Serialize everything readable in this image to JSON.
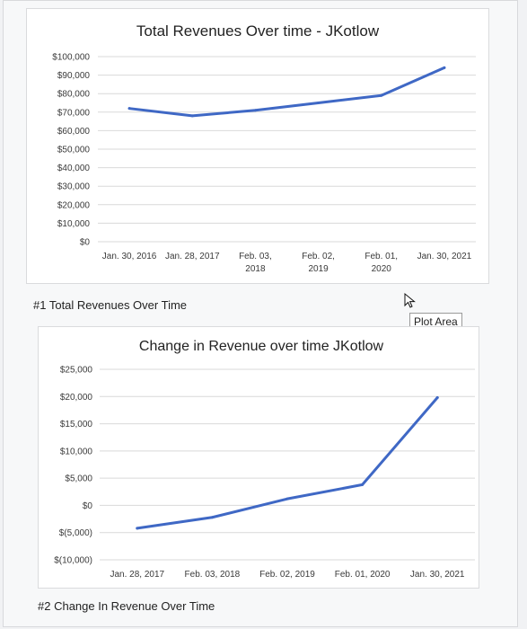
{
  "chart_data": [
    {
      "type": "line",
      "title": "Total Revenues Over time - JKotlow",
      "xlabel": "",
      "ylabel": "",
      "categories": [
        "Jan. 30, 2016",
        "Jan. 28, 2017",
        "Feb. 03, 2018",
        "Feb. 02, 2019",
        "Feb. 01, 2020",
        "Jan. 30, 2021"
      ],
      "category_lines": [
        [
          "Jan. 30, 2016"
        ],
        [
          "Jan. 28, 2017"
        ],
        [
          "Feb. 03,",
          "2018"
        ],
        [
          "Feb. 02,",
          "2019"
        ],
        [
          "Feb. 01,",
          "2020"
        ],
        [
          "Jan. 30, 2021"
        ]
      ],
      "y_ticks": [
        0,
        10000,
        20000,
        30000,
        40000,
        50000,
        60000,
        70000,
        80000,
        90000,
        100000
      ],
      "y_tick_labels": [
        "$0",
        "$10,000",
        "$20,000",
        "$30,000",
        "$40,000",
        "$50,000",
        "$60,000",
        "$70,000",
        "$80,000",
        "$90,000",
        "$100,000"
      ],
      "ylim": [
        0,
        100000
      ],
      "grid": true,
      "legend": "none",
      "series": [
        {
          "values": [
            72000,
            68000,
            71000,
            75000,
            79000,
            94000
          ]
        }
      ]
    },
    {
      "type": "line",
      "title": "Change in Revenue over time JKotlow",
      "xlabel": "",
      "ylabel": "",
      "categories": [
        "Jan. 28, 2017",
        "Feb. 03, 2018",
        "Feb. 02, 2019",
        "Feb. 01, 2020",
        "Jan. 30, 2021"
      ],
      "category_lines": [
        [
          "Jan. 28, 2017"
        ],
        [
          "Feb. 03, 2018"
        ],
        [
          "Feb. 02, 2019"
        ],
        [
          "Feb. 01, 2020"
        ],
        [
          "Jan. 30, 2021"
        ]
      ],
      "y_ticks": [
        -10000,
        -5000,
        0,
        5000,
        10000,
        15000,
        20000,
        25000
      ],
      "y_tick_labels": [
        "$(10,000)",
        "$(5,000)",
        "$0",
        "$5,000",
        "$10,000",
        "$15,000",
        "$20,000",
        "$25,000"
      ],
      "ylim": [
        -10000,
        25000
      ],
      "grid": true,
      "legend": "none",
      "series": [
        {
          "values": [
            -4200,
            -2200,
            1200,
            3800,
            19800
          ]
        }
      ]
    }
  ],
  "colors": {
    "line": "#3f68c5",
    "grid": "#d9d9d9",
    "tick_text": "#3a3a3a"
  },
  "captions": {
    "chart1": "#1 Total Revenues Over Time",
    "chart2": "#2 Change In Revenue Over Time"
  },
  "tooltip": {
    "label": "Plot Area"
  },
  "icons": {
    "cursor": "mouse-pointer-icon"
  }
}
